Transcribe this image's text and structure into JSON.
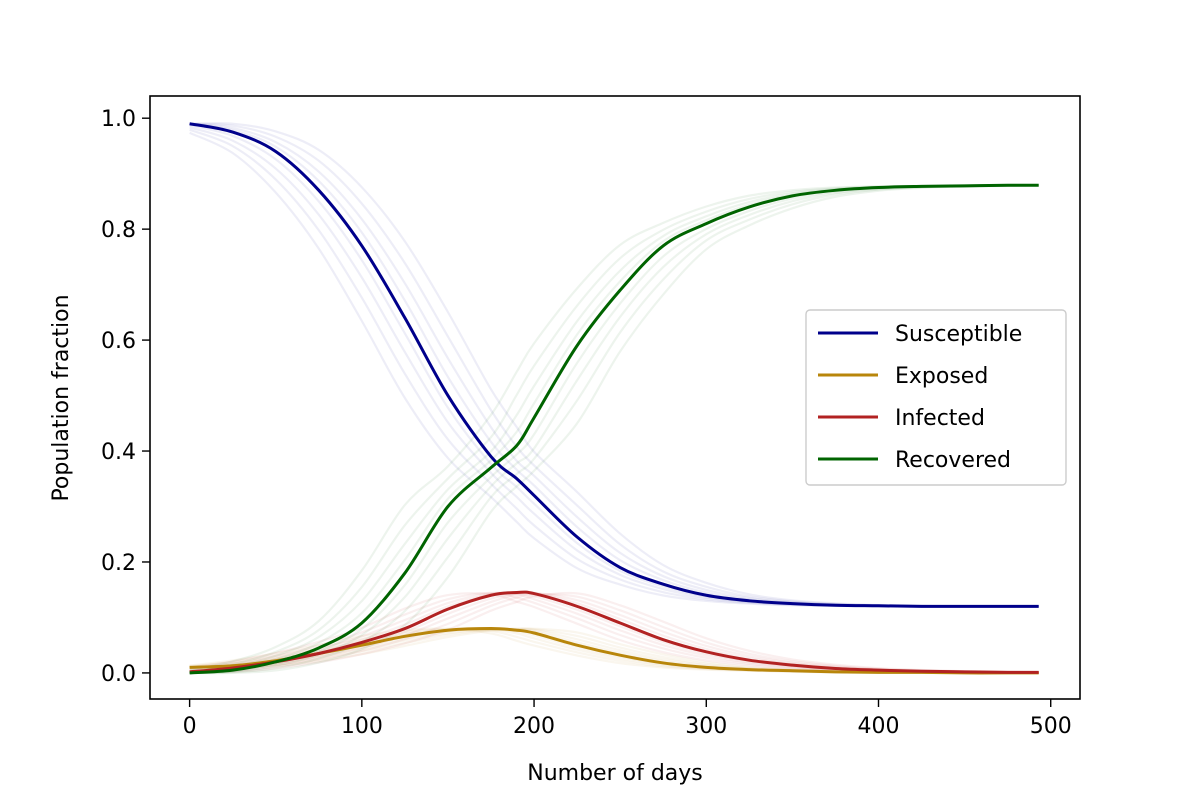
{
  "chart_data": {
    "type": "line",
    "title": "",
    "xlabel": "Number of days",
    "ylabel": "Population fraction",
    "xlim": [
      -23,
      517
    ],
    "ylim": [
      -0.047,
      1.04
    ],
    "xticks": [
      0,
      100,
      200,
      300,
      400,
      500
    ],
    "yticks": [
      0.0,
      0.2,
      0.4,
      0.6,
      0.8,
      1.0
    ],
    "xtick_labels": [
      "0",
      "100",
      "200",
      "300",
      "400",
      "500"
    ],
    "ytick_labels": [
      "0.0",
      "0.2",
      "0.4",
      "0.6",
      "0.8",
      "1.0"
    ],
    "grid": false,
    "legend_position": "center-right",
    "x": [
      0,
      25,
      50,
      75,
      100,
      125,
      150,
      175,
      190,
      200,
      225,
      250,
      275,
      300,
      325,
      350,
      375,
      400,
      425,
      450,
      475,
      493
    ],
    "series": [
      {
        "name": "Susceptible",
        "color": "#00008b",
        "values": [
          0.99,
          0.975,
          0.94,
          0.87,
          0.77,
          0.64,
          0.5,
          0.39,
          0.35,
          0.32,
          0.245,
          0.19,
          0.16,
          0.14,
          0.13,
          0.125,
          0.122,
          0.121,
          0.12,
          0.12,
          0.12,
          0.12
        ]
      },
      {
        "name": "Exposed",
        "color": "#b8860b",
        "values": [
          0.01,
          0.013,
          0.022,
          0.035,
          0.05,
          0.066,
          0.077,
          0.08,
          0.077,
          0.072,
          0.05,
          0.032,
          0.018,
          0.01,
          0.006,
          0.004,
          0.002,
          0.001,
          0.001,
          0.0,
          0.0,
          0.0
        ]
      },
      {
        "name": "Infected",
        "color": "#b22222",
        "values": [
          0.002,
          0.009,
          0.02,
          0.035,
          0.055,
          0.08,
          0.115,
          0.14,
          0.145,
          0.143,
          0.12,
          0.09,
          0.06,
          0.038,
          0.023,
          0.014,
          0.008,
          0.005,
          0.003,
          0.002,
          0.001,
          0.001
        ]
      },
      {
        "name": "Recovered",
        "color": "#006400",
        "values": [
          0.0,
          0.005,
          0.02,
          0.045,
          0.09,
          0.18,
          0.3,
          0.37,
          0.41,
          0.46,
          0.59,
          0.69,
          0.77,
          0.81,
          0.84,
          0.86,
          0.87,
          0.875,
          0.877,
          0.878,
          0.879,
          0.879
        ]
      }
    ]
  }
}
